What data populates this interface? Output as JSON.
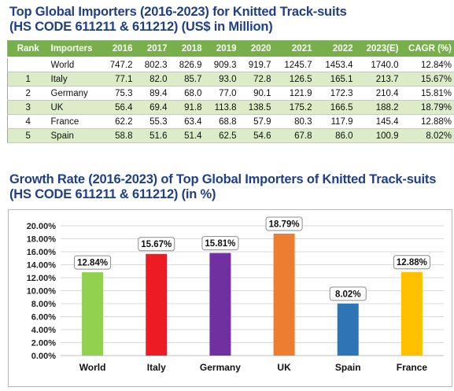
{
  "table_title_line1": "Top Global Importers (2016-2023) for Knitted Track-suits",
  "table_title_line2": "(HS CODE 611211 & 611212) (US$ in Million)",
  "table": {
    "headers": [
      "Rank",
      "Importers",
      "2016",
      "2017",
      "2018",
      "2019",
      "2020",
      "2021",
      "2022",
      "2023(E)",
      "CAGR (%)"
    ],
    "rows": [
      [
        "",
        "World",
        "747.2",
        "802.3",
        "826.9",
        "909.3",
        "919.7",
        "1245.7",
        "1453.4",
        "1740.0",
        "12.84%"
      ],
      [
        "1",
        "Italy",
        "77.1",
        "82.0",
        "85.7",
        "93.0",
        "72.8",
        "126.5",
        "165.1",
        "213.7",
        "15.67%"
      ],
      [
        "2",
        "Germany",
        "75.3",
        "89.4",
        "68.0",
        "77.0",
        "90.1",
        "121.9",
        "172.3",
        "210.4",
        "15.81%"
      ],
      [
        "3",
        "UK",
        "56.4",
        "69.4",
        "91.8",
        "113.8",
        "138.5",
        "175.2",
        "166.5",
        "188.2",
        "18.79%"
      ],
      [
        "4",
        "France",
        "62.2",
        "55.3",
        "63.4",
        "68.8",
        "57.9",
        "80.3",
        "117.9",
        "145.4",
        "12.88%"
      ],
      [
        "5",
        "Spain",
        "58.8",
        "51.6",
        "51.4",
        "62.5",
        "54.6",
        "67.8",
        "86.0",
        "100.9",
        "8.02%"
      ]
    ]
  },
  "chart_title_line1": "Growth Rate (2016-2023) of Top Global Importers of Knitted Track-suits",
  "chart_title_line2": "(HS CODE 611211 & 611212) (in %)",
  "chart_data": {
    "type": "bar",
    "categories": [
      "World",
      "Italy",
      "Germany",
      "UK",
      "Spain",
      "France"
    ],
    "values": [
      12.84,
      15.67,
      15.81,
      18.79,
      8.02,
      12.88
    ],
    "data_labels": [
      "12.84%",
      "15.67%",
      "15.81%",
      "18.79%",
      "8.02%",
      "12.88%"
    ],
    "colors": [
      "#92d050",
      "#ed1c24",
      "#7030a0",
      "#ed7d31",
      "#2e75b6",
      "#ffc000"
    ],
    "ylim": [
      0,
      20
    ],
    "yticks": [
      0,
      2,
      4,
      6,
      8,
      10,
      12,
      14,
      16,
      18,
      20
    ],
    "ytick_labels": [
      "0.00%",
      "2.00%",
      "4.00%",
      "6.00%",
      "8.00%",
      "10.00%",
      "12.00%",
      "14.00%",
      "16.00%",
      "18.00%",
      "20.00%"
    ],
    "grid": true,
    "legend": "none",
    "xlabel": "",
    "ylabel": ""
  }
}
